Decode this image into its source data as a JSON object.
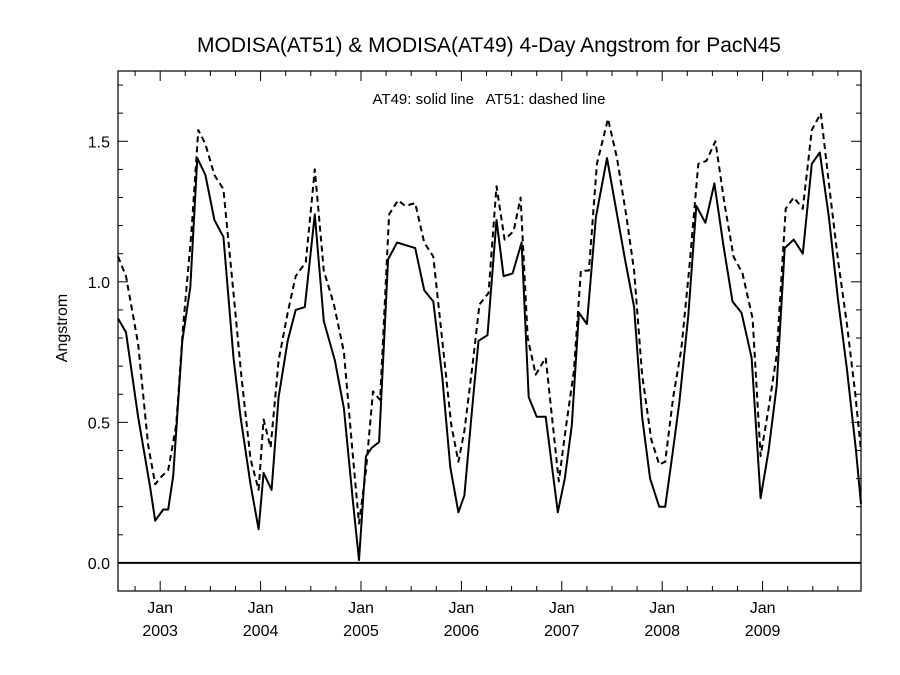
{
  "chart_data": {
    "type": "line",
    "title": "MODISA(AT51) & MODISA(AT49) 4-Day Angstrom for PacN45",
    "annotation": "AT49: solid line   AT51: dashed line",
    "xlabel": "",
    "ylabel": "Angstrom",
    "ylim": [
      -0.1,
      1.75
    ],
    "xlim": [
      2002.58,
      2009.98
    ],
    "yticks": [
      {
        "value": 0.0,
        "label": "0.0"
      },
      {
        "value": 0.5,
        "label": "0.5"
      },
      {
        "value": 1.0,
        "label": "1.0"
      },
      {
        "value": 1.5,
        "label": "1.5"
      }
    ],
    "xticks": [
      {
        "value": 2003.0,
        "label": "Jan",
        "year": "2003"
      },
      {
        "value": 2004.0,
        "label": "Jan",
        "year": "2004"
      },
      {
        "value": 2005.0,
        "label": "Jan",
        "year": "2005"
      },
      {
        "value": 2006.0,
        "label": "Jan",
        "year": "2006"
      },
      {
        "value": 2007.0,
        "label": "Jan",
        "year": "2007"
      },
      {
        "value": 2008.0,
        "label": "Jan",
        "year": "2008"
      },
      {
        "value": 2009.0,
        "label": "Jan",
        "year": "2009"
      }
    ],
    "reference_line": 0.0,
    "grid": false,
    "series": [
      {
        "name": "AT49",
        "style": "solid",
        "color": "#000000",
        "points": [
          [
            2002.58,
            0.87
          ],
          [
            2002.66,
            0.82
          ],
          [
            2002.78,
            0.52
          ],
          [
            2002.9,
            0.27
          ],
          [
            2002.95,
            0.15
          ],
          [
            2003.03,
            0.19
          ],
          [
            2003.08,
            0.19
          ],
          [
            2003.13,
            0.31
          ],
          [
            2003.22,
            0.79
          ],
          [
            2003.3,
            0.98
          ],
          [
            2003.37,
            1.44
          ],
          [
            2003.45,
            1.38
          ],
          [
            2003.54,
            1.22
          ],
          [
            2003.63,
            1.16
          ],
          [
            2003.73,
            0.73
          ],
          [
            2003.8,
            0.52
          ],
          [
            2003.9,
            0.28
          ],
          [
            2003.98,
            0.12
          ],
          [
            2004.03,
            0.32
          ],
          [
            2004.11,
            0.26
          ],
          [
            2004.18,
            0.59
          ],
          [
            2004.27,
            0.79
          ],
          [
            2004.35,
            0.9
          ],
          [
            2004.44,
            0.91
          ],
          [
            2004.54,
            1.24
          ],
          [
            2004.63,
            0.86
          ],
          [
            2004.74,
            0.72
          ],
          [
            2004.83,
            0.55
          ],
          [
            2004.92,
            0.22
          ],
          [
            2004.98,
            0.01
          ],
          [
            2005.05,
            0.38
          ],
          [
            2005.11,
            0.41
          ],
          [
            2005.18,
            0.43
          ],
          [
            2005.27,
            1.08
          ],
          [
            2005.36,
            1.14
          ],
          [
            2005.45,
            1.13
          ],
          [
            2005.54,
            1.12
          ],
          [
            2005.63,
            0.97
          ],
          [
            2005.72,
            0.93
          ],
          [
            2005.81,
            0.66
          ],
          [
            2005.89,
            0.34
          ],
          [
            2005.97,
            0.18
          ],
          [
            2006.03,
            0.24
          ],
          [
            2006.1,
            0.52
          ],
          [
            2006.17,
            0.79
          ],
          [
            2006.26,
            0.81
          ],
          [
            2006.35,
            1.22
          ],
          [
            2006.42,
            1.02
          ],
          [
            2006.51,
            1.03
          ],
          [
            2006.6,
            1.14
          ],
          [
            2006.67,
            0.59
          ],
          [
            2006.75,
            0.52
          ],
          [
            2006.84,
            0.52
          ],
          [
            2006.96,
            0.18
          ],
          [
            2007.03,
            0.3
          ],
          [
            2007.1,
            0.49
          ],
          [
            2007.17,
            0.89
          ],
          [
            2007.25,
            0.85
          ],
          [
            2007.34,
            1.23
          ],
          [
            2007.45,
            1.44
          ],
          [
            2007.54,
            1.26
          ],
          [
            2007.63,
            1.08
          ],
          [
            2007.72,
            0.91
          ],
          [
            2007.8,
            0.52
          ],
          [
            2007.88,
            0.3
          ],
          [
            2007.97,
            0.2
          ],
          [
            2008.03,
            0.2
          ],
          [
            2008.1,
            0.38
          ],
          [
            2008.17,
            0.57
          ],
          [
            2008.26,
            0.88
          ],
          [
            2008.34,
            1.27
          ],
          [
            2008.43,
            1.21
          ],
          [
            2008.52,
            1.35
          ],
          [
            2008.61,
            1.13
          ],
          [
            2008.7,
            0.93
          ],
          [
            2008.79,
            0.89
          ],
          [
            2008.89,
            0.73
          ],
          [
            2008.98,
            0.23
          ],
          [
            2009.06,
            0.4
          ],
          [
            2009.14,
            0.63
          ],
          [
            2009.22,
            1.12
          ],
          [
            2009.31,
            1.15
          ],
          [
            2009.4,
            1.1
          ],
          [
            2009.49,
            1.42
          ],
          [
            2009.57,
            1.46
          ],
          [
            2009.66,
            1.23
          ],
          [
            2009.75,
            0.94
          ],
          [
            2009.84,
            0.69
          ],
          [
            2009.93,
            0.4
          ],
          [
            2009.98,
            0.21
          ]
        ]
      },
      {
        "name": "AT51",
        "style": "dashed",
        "color": "#000000",
        "points": [
          [
            2002.58,
            1.09
          ],
          [
            2002.66,
            1.02
          ],
          [
            2002.78,
            0.78
          ],
          [
            2002.88,
            0.42
          ],
          [
            2002.95,
            0.28
          ],
          [
            2003.02,
            0.31
          ],
          [
            2003.08,
            0.33
          ],
          [
            2003.16,
            0.49
          ],
          [
            2003.23,
            0.85
          ],
          [
            2003.31,
            1.17
          ],
          [
            2003.38,
            1.54
          ],
          [
            2003.45,
            1.49
          ],
          [
            2003.54,
            1.38
          ],
          [
            2003.63,
            1.33
          ],
          [
            2003.73,
            0.96
          ],
          [
            2003.81,
            0.66
          ],
          [
            2003.9,
            0.37
          ],
          [
            2003.98,
            0.26
          ],
          [
            2004.03,
            0.51
          ],
          [
            2004.1,
            0.41
          ],
          [
            2004.18,
            0.72
          ],
          [
            2004.27,
            0.89
          ],
          [
            2004.35,
            1.02
          ],
          [
            2004.45,
            1.07
          ],
          [
            2004.54,
            1.4
          ],
          [
            2004.63,
            1.04
          ],
          [
            2004.73,
            0.92
          ],
          [
            2004.83,
            0.75
          ],
          [
            2004.92,
            0.38
          ],
          [
            2004.98,
            0.14
          ],
          [
            2005.05,
            0.33
          ],
          [
            2005.12,
            0.61
          ],
          [
            2005.19,
            0.58
          ],
          [
            2005.28,
            1.24
          ],
          [
            2005.37,
            1.29
          ],
          [
            2005.44,
            1.27
          ],
          [
            2005.54,
            1.28
          ],
          [
            2005.63,
            1.14
          ],
          [
            2005.72,
            1.09
          ],
          [
            2005.81,
            0.79
          ],
          [
            2005.9,
            0.49
          ],
          [
            2005.97,
            0.36
          ],
          [
            2006.03,
            0.47
          ],
          [
            2006.11,
            0.7
          ],
          [
            2006.18,
            0.92
          ],
          [
            2006.27,
            0.96
          ],
          [
            2006.35,
            1.34
          ],
          [
            2006.43,
            1.15
          ],
          [
            2006.52,
            1.18
          ],
          [
            2006.59,
            1.3
          ],
          [
            2006.66,
            0.8
          ],
          [
            2006.74,
            0.67
          ],
          [
            2006.84,
            0.73
          ],
          [
            2006.97,
            0.29
          ],
          [
            2007.04,
            0.48
          ],
          [
            2007.12,
            0.68
          ],
          [
            2007.19,
            1.04
          ],
          [
            2007.27,
            1.04
          ],
          [
            2007.35,
            1.42
          ],
          [
            2007.46,
            1.58
          ],
          [
            2007.55,
            1.44
          ],
          [
            2007.64,
            1.24
          ],
          [
            2007.72,
            1.04
          ],
          [
            2007.8,
            0.67
          ],
          [
            2007.89,
            0.44
          ],
          [
            2007.97,
            0.35
          ],
          [
            2008.03,
            0.36
          ],
          [
            2008.11,
            0.59
          ],
          [
            2008.19,
            0.76
          ],
          [
            2008.27,
            1.05
          ],
          [
            2008.36,
            1.42
          ],
          [
            2008.44,
            1.43
          ],
          [
            2008.53,
            1.5
          ],
          [
            2008.62,
            1.28
          ],
          [
            2008.71,
            1.09
          ],
          [
            2008.8,
            1.03
          ],
          [
            2008.9,
            0.87
          ],
          [
            2008.98,
            0.38
          ],
          [
            2009.06,
            0.55
          ],
          [
            2009.14,
            0.74
          ],
          [
            2009.23,
            1.26
          ],
          [
            2009.31,
            1.3
          ],
          [
            2009.4,
            1.26
          ],
          [
            2009.49,
            1.54
          ],
          [
            2009.58,
            1.6
          ],
          [
            2009.67,
            1.32
          ],
          [
            2009.75,
            1.08
          ],
          [
            2009.84,
            0.85
          ],
          [
            2009.92,
            0.61
          ],
          [
            2009.98,
            0.4
          ]
        ]
      }
    ]
  }
}
